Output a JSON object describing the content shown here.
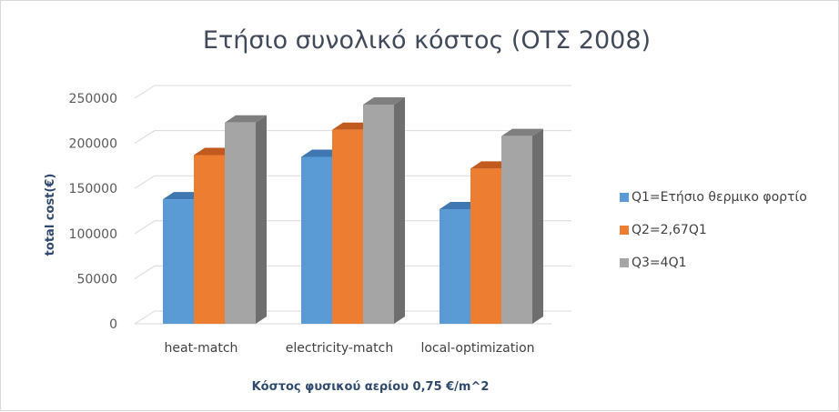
{
  "chart_data": {
    "type": "bar",
    "style": "3d-clustered-column",
    "title": "Ετήσιο συνολικό κόστος (ΟΤΣ 2008)",
    "xlabel": "Κόστος φυσικού αερίου 0,75 €/m^2",
    "ylabel": "total cost(€)",
    "ylim": [
      0,
      250000
    ],
    "yticks": [
      0,
      50000,
      100000,
      150000,
      200000,
      250000
    ],
    "ytick_labels": [
      "0",
      "50000",
      "100000",
      "150000",
      "200000",
      "250000"
    ],
    "categories": [
      "heat-match",
      "electricity-match",
      "local-optimization"
    ],
    "series": [
      {
        "name": "Q1=Ετήσιο θερμικο φορτίο",
        "values": [
          138000,
          185000,
          127000
        ],
        "color": "#5b9bd5",
        "top": "#3f77b0",
        "side": "#2f5f92"
      },
      {
        "name": "Q2=2,67Q1",
        "values": [
          187000,
          215000,
          172000
        ],
        "color": "#ed7d31",
        "top": "#c15a1e",
        "side": "#a84c14"
      },
      {
        "name": "Q3=4Q1",
        "values": [
          223000,
          243000,
          208000
        ],
        "color": "#a5a5a5",
        "top": "#7f7f7f",
        "side": "#6e6e6e"
      }
    ],
    "legend_position": "right",
    "grid": true
  }
}
